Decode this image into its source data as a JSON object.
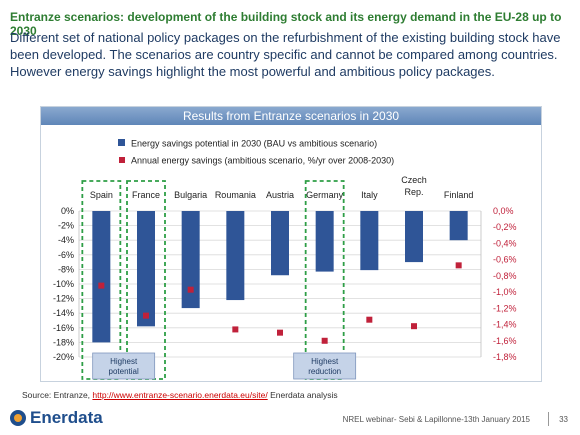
{
  "heading": "Entranze scenarios: development of the building stock and its energy demand in the EU-28 up to 2030",
  "intro": "Different set of national policy packages on the refurbishment of the existing building stock have been developed. The scenarios are country specific and cannot be compared among countries. However energy savings highlight the most powerful and ambitious policy packages.",
  "panel_title": "Results from Entranze scenarios in 2030",
  "source": {
    "prefix": "Source: Entranze, ",
    "link": "http://www.entranze-scenario.enerdata.eu/site/",
    "suffix": " Enerdata analysis"
  },
  "logo_text": "Enerdata",
  "footer": "NREL webinar- Sebi & Lapillonne-13th January 2015",
  "page_number": "33",
  "chart_data": {
    "type": "bar",
    "categories": [
      "Spain",
      "France",
      "Bulgaria",
      "Roumania",
      "Austria",
      "Germany",
      "Italy",
      "Czech Rep.",
      "Finland"
    ],
    "series": [
      {
        "name": "Energy savings potential in 2030 (BAU vs ambitious scenario)",
        "type": "bar",
        "axis": "left",
        "color": "#2f5597",
        "values": [
          -18,
          -15.8,
          -13.3,
          -12.2,
          -8.8,
          -8.3,
          -8.1,
          -7.0,
          -4.0
        ]
      },
      {
        "name": "Annual energy savings (ambitious scenario, %/yr over 2008-2030)",
        "type": "scatter",
        "axis": "right",
        "color": "#c0213a",
        "values": [
          -0.92,
          -1.29,
          -0.97,
          -1.46,
          -1.5,
          -1.6,
          -1.34,
          -1.42,
          -0.67
        ]
      }
    ],
    "left_ticks": [
      "0%",
      "-2%",
      "-4%",
      "-6%",
      "-8%",
      "-10%",
      "-12%",
      "-14%",
      "-16%",
      "-18%",
      "-20%"
    ],
    "right_ticks": [
      "0,0%",
      "-0,2%",
      "-0,4%",
      "-0,6%",
      "-0,8%",
      "-1,0%",
      "-1,2%",
      "-1,4%",
      "-1,6%",
      "-1,8%"
    ],
    "ylim_left": [
      -20,
      0
    ],
    "ylim_right": [
      -1.8,
      0
    ],
    "grid": true,
    "legend_position": "top-left",
    "callouts": [
      {
        "text": "Highest potential",
        "categories": [
          "Spain",
          "France"
        ]
      },
      {
        "text": "Highest reduction",
        "categories": [
          "Germany"
        ]
      }
    ]
  }
}
